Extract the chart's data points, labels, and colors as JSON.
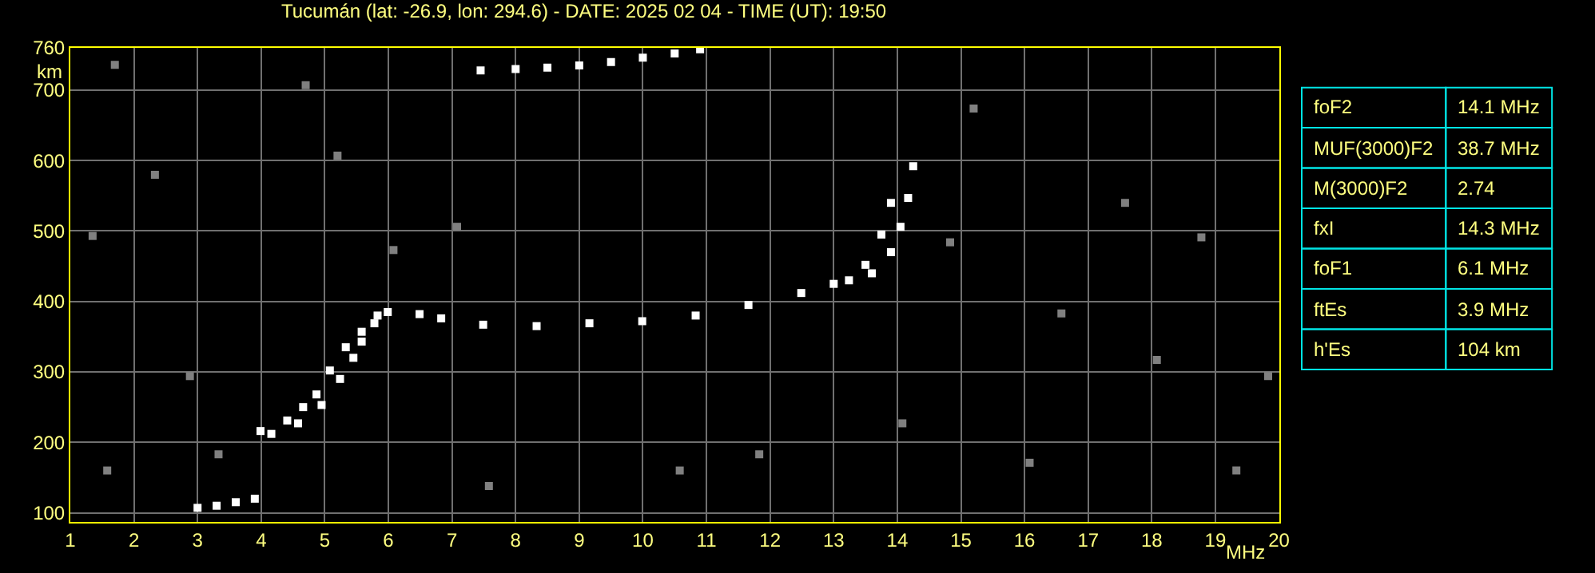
{
  "chart_data": [
    {
      "type": "scatter",
      "title": "Tucumán (lat: -26.9, lon: 294.6) - DATE: 2025 02 04 - TIME (UT): 19:50",
      "xlabel": "MHz",
      "ylabel": "km",
      "xlim": [
        1,
        20
      ],
      "ylim": [
        87,
        760
      ],
      "xticks": [
        1,
        2,
        3,
        4,
        5,
        6,
        7,
        8,
        9,
        10,
        11,
        12,
        13,
        14,
        15,
        16,
        17,
        18,
        19,
        20
      ],
      "yticks": [
        100,
        200,
        300,
        400,
        500,
        600,
        700,
        760
      ],
      "grid": true,
      "marker": "square",
      "series": [
        {
          "color": "#ffffff",
          "x": [
            3.99,
            4.16,
            4.41,
            4.66,
            4.87,
            5.08,
            5.33,
            5.58,
            5.83,
            5.99,
            6.49,
            6.83,
            7.49,
            8.33,
            9.16,
            9.99,
            10.83,
            11.66,
            12.49,
            13.24,
            13.5,
            13.75,
            13.9
          ],
          "values": [
            216,
            212,
            231,
            250,
            268,
            302,
            335,
            357,
            380,
            385,
            382,
            376,
            367,
            365,
            369,
            372,
            380,
            395,
            412,
            430,
            452,
            495,
            540
          ]
        },
        {
          "color": "#ffffff",
          "x": [
            4.58,
            4.95,
            5.24,
            5.45,
            5.58,
            5.78,
            13.0,
            13.6,
            13.9,
            14.05,
            14.17,
            14.25
          ],
          "values": [
            227,
            253,
            290,
            320,
            343,
            369,
            425,
            440,
            470,
            506,
            547,
            592
          ]
        },
        {
          "color": "#ffffff",
          "x": [
            3.0,
            3.3,
            3.6,
            3.9
          ],
          "values": [
            107,
            110,
            115,
            120
          ]
        },
        {
          "color": "#ffffff",
          "x": [
            7.45,
            8.0,
            8.5,
            9.0,
            9.5,
            10.0,
            10.5,
            10.9
          ],
          "values": [
            728,
            730,
            732,
            735,
            740,
            746,
            752,
            758
          ]
        },
        {
          "color": "#808080",
          "x": [
            1.7,
            2.33,
            1.35,
            2.88,
            5.2,
            4.7,
            6.08,
            7.08,
            10.58,
            14.83,
            15.2,
            16.08,
            17.58,
            18.08,
            18.78,
            19.33,
            19.83,
            16.58,
            14.08,
            11.83,
            1.58,
            3.33,
            7.58
          ],
          "values": [
            736,
            580,
            493,
            294,
            607,
            707,
            473,
            506,
            160,
            484,
            674,
            171,
            540,
            317,
            491,
            160,
            294,
            383,
            227,
            183,
            160,
            183,
            138
          ]
        }
      ]
    },
    {
      "type": "other",
      "annotations": [
        "foF2",
        "14.1 MHz",
        "MUF(3000)F2",
        "38.7 MHz",
        "M(3000)F2",
        "2.74",
        "fxI",
        "14.3 MHz",
        "foF1",
        "6.1 MHz",
        "ftEs",
        "3.9 MHz",
        "h'Es",
        "104 km"
      ]
    }
  ]
}
